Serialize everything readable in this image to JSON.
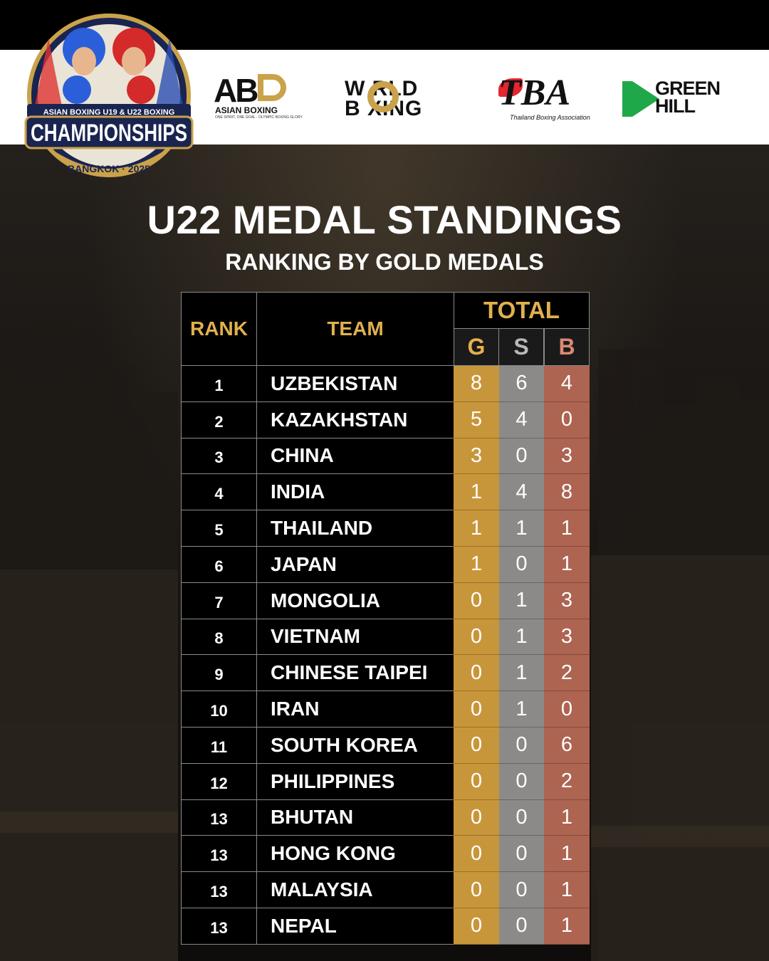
{
  "event_logo": {
    "line1": "ASIAN BOXING U19 & U22 BOXING",
    "line2": "CHAMPIONSHIPS",
    "line3": "BANGKOK · 2025"
  },
  "sponsors": {
    "abd": {
      "mark": "AB",
      "name": "ASIAN BOXING",
      "tagline": "ONE SPIRIT, ONE GOAL - OLYMPIC BOXING GLORY"
    },
    "world_boxing": {
      "line1": "W   RLD",
      "line2": "B   XING"
    },
    "tba": {
      "mark": "TBA",
      "name": "Thailand Boxing Association"
    },
    "green_hill": {
      "line1": "GREEN",
      "line2": "HILL"
    }
  },
  "heading": {
    "title": "U22 MEDAL STANDINGS",
    "subtitle": "RANKING BY GOLD MEDALS"
  },
  "table": {
    "headers": {
      "rank": "RANK",
      "team": "TEAM",
      "total": "TOTAL",
      "gold": "G",
      "silver": "S",
      "bronze": "B"
    },
    "rows": [
      {
        "rank": "1",
        "team": "UZBEKISTAN",
        "g": "8",
        "s": "6",
        "b": "4"
      },
      {
        "rank": "2",
        "team": "KAZAKHSTAN",
        "g": "5",
        "s": "4",
        "b": "0"
      },
      {
        "rank": "3",
        "team": "CHINA",
        "g": "3",
        "s": "0",
        "b": "3"
      },
      {
        "rank": "4",
        "team": "INDIA",
        "g": "1",
        "s": "4",
        "b": "8"
      },
      {
        "rank": "5",
        "team": "THAILAND",
        "g": "1",
        "s": "1",
        "b": "1"
      },
      {
        "rank": "6",
        "team": "JAPAN",
        "g": "1",
        "s": "0",
        "b": "1"
      },
      {
        "rank": "7",
        "team": "MONGOLIA",
        "g": "0",
        "s": "1",
        "b": "3"
      },
      {
        "rank": "8",
        "team": "VIETNAM",
        "g": "0",
        "s": "1",
        "b": "3"
      },
      {
        "rank": "9",
        "team": "CHINESE TAIPEI",
        "g": "0",
        "s": "1",
        "b": "2"
      },
      {
        "rank": "10",
        "team": "IRAN",
        "g": "0",
        "s": "1",
        "b": "0"
      },
      {
        "rank": "11",
        "team": "SOUTH KOREA",
        "g": "0",
        "s": "0",
        "b": "6"
      },
      {
        "rank": "12",
        "team": "PHILIPPINES",
        "g": "0",
        "s": "0",
        "b": "2"
      },
      {
        "rank": "13",
        "team": "BHUTAN",
        "g": "0",
        "s": "0",
        "b": "1"
      },
      {
        "rank": "13",
        "team": "HONG KONG",
        "g": "0",
        "s": "0",
        "b": "1"
      },
      {
        "rank": "13",
        "team": "MALAYSIA",
        "g": "0",
        "s": "0",
        "b": "1"
      },
      {
        "rank": "13",
        "team": "NEPAL",
        "g": "0",
        "s": "0",
        "b": "1"
      }
    ]
  },
  "colors": {
    "gold": "#c8963a",
    "silver": "#8b8a88",
    "bronze": "#ad6451",
    "header_text": "#e2b04e"
  }
}
